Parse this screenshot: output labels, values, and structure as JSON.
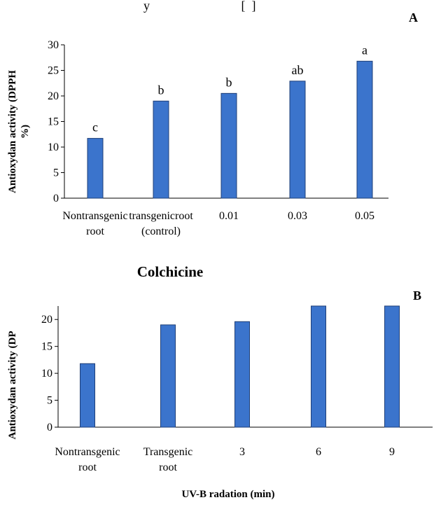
{
  "header_fragment": "y                             [  ]",
  "chart_data": [
    {
      "panel_label": "A",
      "type": "bar",
      "categories": [
        [
          "Nontransgenic",
          "root"
        ],
        [
          "transgenicroot",
          "(control)"
        ],
        [
          "0.01"
        ],
        [
          "0.03"
        ],
        [
          "0.05"
        ]
      ],
      "values": [
        11.7,
        19.0,
        20.5,
        22.9,
        26.8
      ],
      "data_labels": [
        "c",
        "b",
        "b",
        "ab",
        "a"
      ],
      "ylim": [
        0,
        30
      ],
      "yticks": [
        0,
        5,
        10,
        15,
        20,
        25,
        30
      ],
      "ylabel": [
        "Antioxydan activity (DPPH",
        "%)"
      ],
      "xlabel": "Colchicine",
      "bar_color": "#3b74cc",
      "bar_edge": "#1f3f77",
      "grid": false
    },
    {
      "panel_label": "B",
      "type": "bar",
      "categories": [
        [
          "Nontransgenic",
          "root"
        ],
        [
          "Transgenic",
          "root"
        ],
        [
          "3"
        ],
        [
          "6"
        ],
        [
          "9"
        ]
      ],
      "values": [
        11.8,
        19.0,
        19.6,
        22.5,
        22.5
      ],
      "ylim": [
        0,
        22.5
      ],
      "yticks": [
        0,
        5,
        10,
        15,
        20
      ],
      "ylabel": [
        "Antioxydan activity (DP"
      ],
      "xlabel": "UV-B radation (min)",
      "bar_color": "#3b74cc",
      "bar_edge": "#1f3f77",
      "grid": false
    }
  ]
}
